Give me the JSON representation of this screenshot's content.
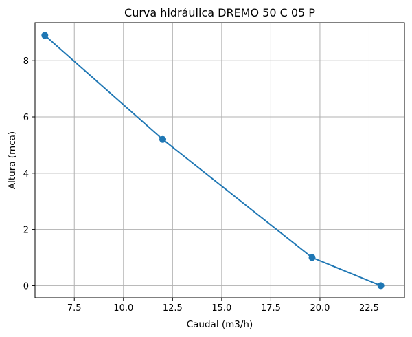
{
  "chart_data": {
    "type": "line",
    "title": "Curva hidráulica DREMO 50 C 05 P",
    "xlabel": "Caudal (m3/h)",
    "ylabel": "Altura (mca)",
    "x": [
      6.0,
      12.0,
      19.6,
      23.1
    ],
    "series": [
      {
        "name": "DREMO 50 C 05 P",
        "values": [
          8.9,
          5.2,
          1.0,
          0.0
        ],
        "color": "#1f77b4",
        "marker": "circle"
      }
    ],
    "xlim": [
      5.5,
      24.3
    ],
    "ylim": [
      -0.43,
      9.35
    ],
    "xticks": [
      7.5,
      10.0,
      12.5,
      15.0,
      17.5,
      20.0,
      22.5
    ],
    "xtick_labels": [
      "7.5",
      "10.0",
      "12.5",
      "15.0",
      "17.5",
      "20.0",
      "22.5"
    ],
    "yticks": [
      0,
      2,
      4,
      6,
      8
    ],
    "ytick_labels": [
      "0",
      "2",
      "4",
      "6",
      "8"
    ],
    "grid": true,
    "legend": null
  },
  "colors": {
    "line": "#1f77b4",
    "grid": "#b0b0b0",
    "axes": "#000000"
  }
}
